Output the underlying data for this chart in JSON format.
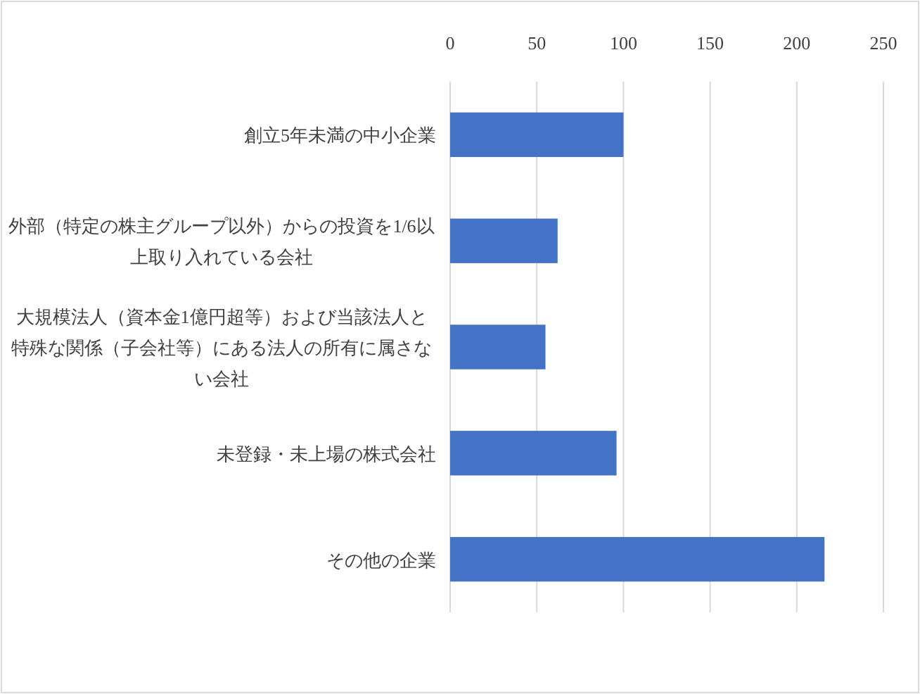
{
  "chart_data": {
    "type": "bar",
    "orientation": "horizontal",
    "categories": [
      "創立5年未満の中小企業",
      "外部（特定の株主グループ以外）からの投資を1/6以上取り入れている会社",
      "大規模法人（資本金1億円超等）および当該法人と特殊な関係（子会社等）にある法人の所有に属さない会社",
      "未登録・未上場の株式会社",
      "その他の企業"
    ],
    "values": [
      100,
      62,
      55,
      96,
      216
    ],
    "color": "#4472c4",
    "xlim": [
      0,
      250
    ],
    "xticks": [
      0,
      50,
      100,
      150,
      200,
      250
    ],
    "grid": "x"
  }
}
